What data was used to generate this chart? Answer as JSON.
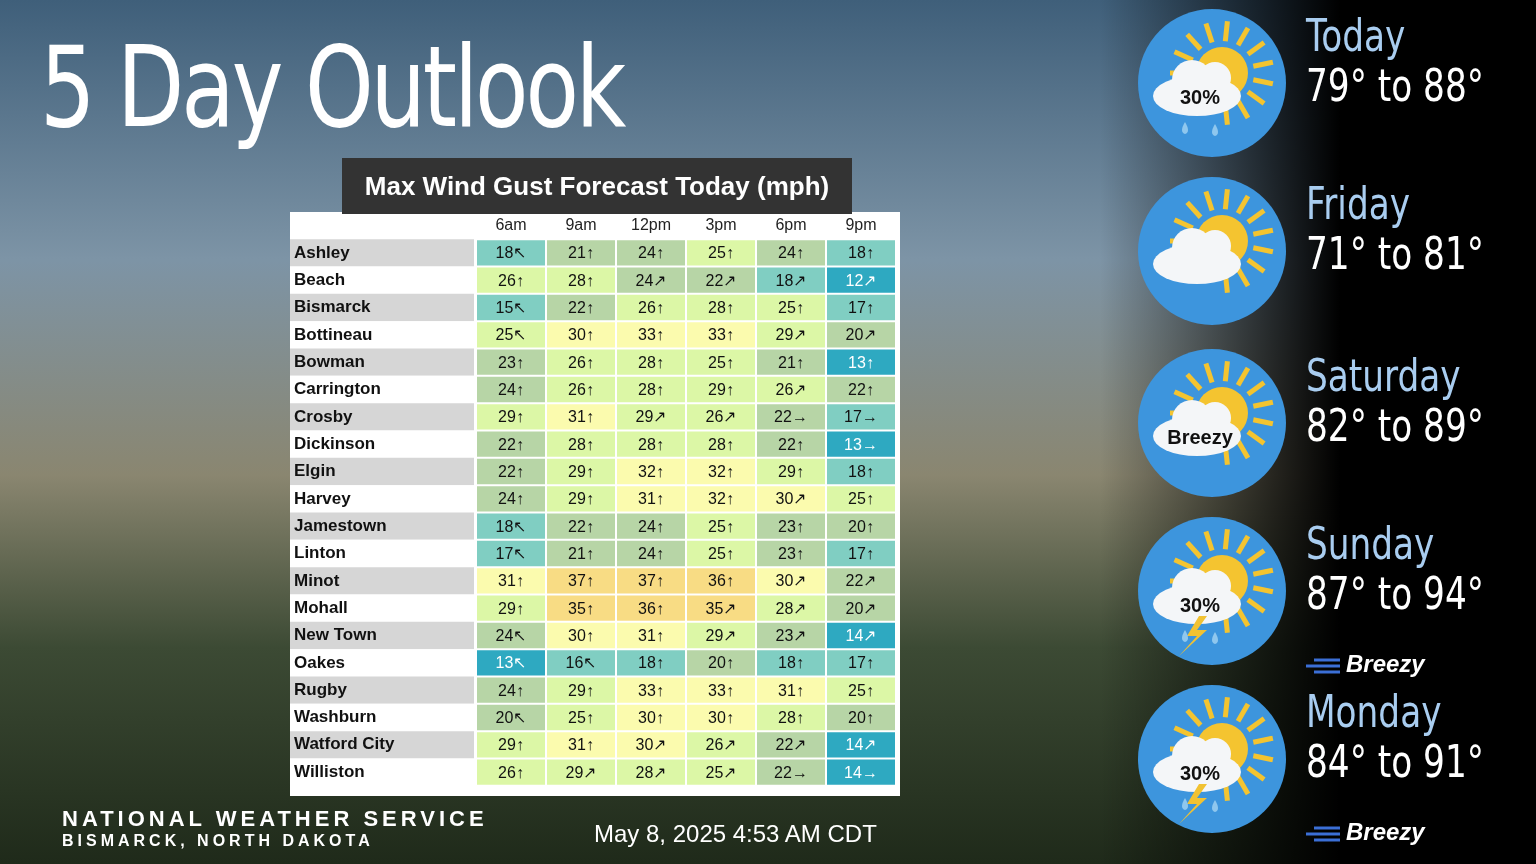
{
  "chart_data": [
    {
      "type": "heatmap",
      "title": "Max Wind Gust Forecast Today (mph)",
      "categories": [
        "6am",
        "9am",
        "12pm",
        "3pm",
        "6pm",
        "9pm"
      ],
      "y_categories": [
        "Ashley",
        "Beach",
        "Bismarck",
        "Bottineau",
        "Bowman",
        "Carrington",
        "Crosby",
        "Dickinson",
        "Elgin",
        "Harvey",
        "Jamestown",
        "Linton",
        "Minot",
        "Mohall",
        "New Town",
        "Oakes",
        "Rugby",
        "Washburn",
        "Watford City",
        "Williston"
      ],
      "cells": [
        [
          18,
          21,
          24,
          25,
          24,
          18
        ],
        [
          26,
          28,
          24,
          22,
          18,
          12
        ],
        [
          15,
          22,
          26,
          28,
          25,
          17
        ],
        [
          25,
          30,
          33,
          33,
          29,
          20
        ],
        [
          23,
          26,
          28,
          25,
          21,
          13
        ],
        [
          24,
          26,
          28,
          29,
          26,
          22
        ],
        [
          29,
          31,
          29,
          26,
          22,
          17
        ],
        [
          22,
          28,
          28,
          28,
          22,
          13
        ],
        [
          22,
          29,
          32,
          32,
          29,
          18
        ],
        [
          24,
          29,
          31,
          32,
          30,
          25
        ],
        [
          18,
          22,
          24,
          25,
          23,
          20
        ],
        [
          17,
          21,
          24,
          25,
          23,
          17
        ],
        [
          31,
          37,
          37,
          36,
          30,
          22
        ],
        [
          29,
          35,
          36,
          35,
          28,
          20
        ],
        [
          24,
          30,
          31,
          29,
          23,
          14
        ],
        [
          13,
          16,
          18,
          20,
          18,
          17
        ],
        [
          24,
          29,
          33,
          33,
          31,
          25
        ],
        [
          20,
          25,
          30,
          30,
          28,
          20
        ],
        [
          29,
          31,
          30,
          26,
          22,
          14
        ],
        [
          26,
          29,
          28,
          25,
          22,
          14
        ]
      ],
      "cell_labels": [
        [
          "18↖",
          "21↑",
          "24↑",
          "25↑",
          "24↑",
          "18↑"
        ],
        [
          "26↑",
          "28↑",
          "24↗",
          "22↗",
          "18↗",
          "12↗"
        ],
        [
          "15↖",
          "22↑",
          "26↑",
          "28↑",
          "25↑",
          "17↑"
        ],
        [
          "25↖",
          "30↑",
          "33↑",
          "33↑",
          "29↗",
          "20↗"
        ],
        [
          "23↑",
          "26↑",
          "28↑",
          "25↑",
          "21↑",
          "13↑"
        ],
        [
          "24↑",
          "26↑",
          "28↑",
          "29↑",
          "26↗",
          "22↑"
        ],
        [
          "29↑",
          "31↑",
          "29↗",
          "26↗",
          "22→",
          "17→"
        ],
        [
          "22↑",
          "28↑",
          "28↑",
          "28↑",
          "22↑",
          "13→"
        ],
        [
          "22↑",
          "29↑",
          "32↑",
          "32↑",
          "29↑",
          "18↑"
        ],
        [
          "24↑",
          "29↑",
          "31↑",
          "32↑",
          "30↗",
          "25↑"
        ],
        [
          "18↖",
          "22↑",
          "24↑",
          "25↑",
          "23↑",
          "20↑"
        ],
        [
          "17↖",
          "21↑",
          "24↑",
          "25↑",
          "23↑",
          "17↑"
        ],
        [
          "31↑",
          "37↑",
          "37↑",
          "36↑",
          "30↗",
          "22↗"
        ],
        [
          "29↑",
          "35↑",
          "36↑",
          "35↗",
          "28↗",
          "20↗"
        ],
        [
          "24↖",
          "30↑",
          "31↑",
          "29↗",
          "23↗",
          "14↗"
        ],
        [
          "13↖",
          "16↖",
          "18↑",
          "20↑",
          "18↑",
          "17↑"
        ],
        [
          "24↑",
          "29↑",
          "33↑",
          "33↑",
          "31↑",
          "25↑"
        ],
        [
          "20↖",
          "25↑",
          "30↑",
          "30↑",
          "28↑",
          "20↑"
        ],
        [
          "29↑",
          "31↑",
          "30↗",
          "26↗",
          "22↗",
          "14↗"
        ],
        [
          "26↑",
          "29↗",
          "28↗",
          "25↗",
          "22→",
          "14→"
        ]
      ],
      "grid": false,
      "legend": false,
      "annotations": [
        "NATIONAL WEATHER SERVICE",
        "BISMARCK, NORTH DAKOTA",
        "May 8, 2025 4:53 AM CDT"
      ]
    },
    {
      "type": "other",
      "title": "5 Day Outlook",
      "categories": [
        "Today",
        "Friday",
        "Saturday",
        "Sunday",
        "Monday"
      ],
      "value_labels": [
        "79° to 88°",
        "71° to 81°",
        "82° to 89°",
        "87° to 94°",
        "84° to 91°"
      ],
      "annotations": [
        "30%",
        "Breezy",
        "30%",
        "Breezy",
        "30%",
        "Breezy"
      ]
    }
  ]
}
